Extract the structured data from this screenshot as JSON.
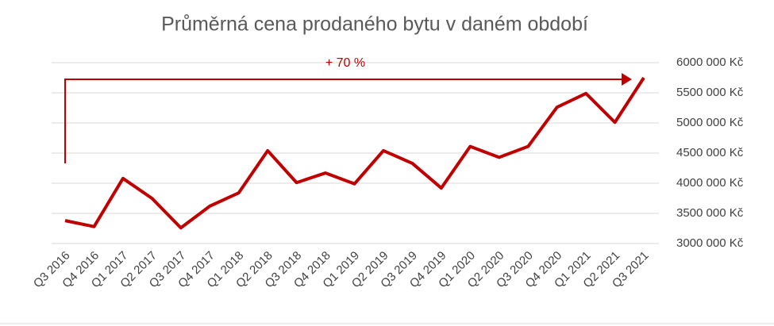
{
  "chart_data": {
    "type": "line",
    "title": "Průměrná cena prodaného bytu v daném období",
    "annotation": "+ 70 %",
    "categories": [
      "Q3 2016",
      "Q4 2016",
      "Q1 2017",
      "Q2 2017",
      "Q3 2017",
      "Q4 2017",
      "Q1 2018",
      "Q2 2018",
      "Q3 2018",
      "Q4 2018",
      "Q1 2019",
      "Q2 2019",
      "Q3 2019",
      "Q4 2019",
      "Q1 2020",
      "Q2 2020",
      "Q3 2020",
      "Q4 2020",
      "Q1 2021",
      "Q2 2021",
      "Q3 2021"
    ],
    "series": [
      {
        "color": "#c00000",
        "values": [
          3380000,
          3280000,
          4080000,
          3750000,
          3260000,
          3620000,
          3840000,
          4540000,
          4010000,
          4170000,
          3990000,
          4540000,
          4330000,
          3920000,
          4610000,
          4430000,
          4610000,
          5260000,
          5490000,
          5010000,
          5750000
        ]
      }
    ],
    "ylim": [
      3000000,
      6000000
    ],
    "yticks": [
      {
        "value": 3000000,
        "label": "3000 000 Kč"
      },
      {
        "value": 3500000,
        "label": "3500 000 Kč"
      },
      {
        "value": 4000000,
        "label": "4000 000 Kč"
      },
      {
        "value": 4500000,
        "label": "4500 000 Kč"
      },
      {
        "value": 5000000,
        "label": "5000 000 Kč"
      },
      {
        "value": 5500000,
        "label": "5500 000 Kč"
      },
      {
        "value": 6000000,
        "label": "6000 000 Kč"
      }
    ],
    "grid": true
  }
}
